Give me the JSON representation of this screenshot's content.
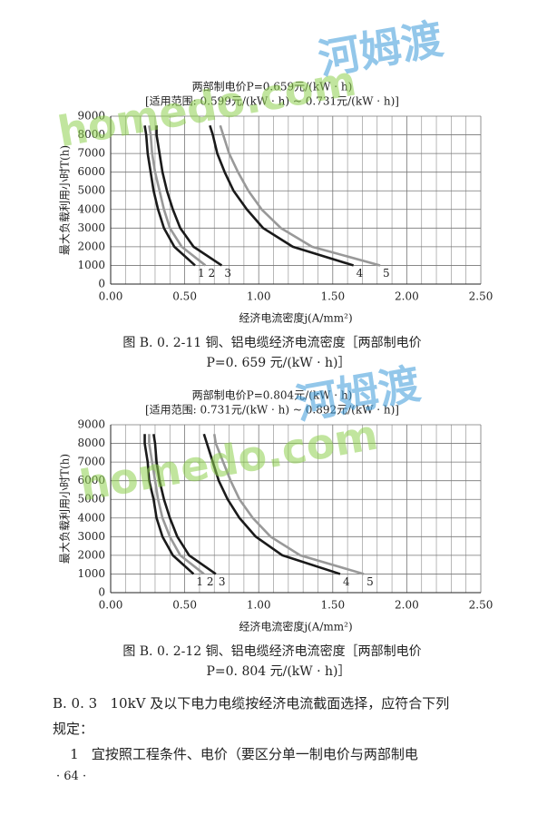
{
  "chart_data": [
    {
      "type": "line",
      "title": "两部制电价P=0.659元/(kW · h)",
      "subtitle": "[适用范围: 0.599元/(kW · h) ~ 0.731元/(kW · h)]",
      "x_label": "经济电流密度j(A/mm²)",
      "y_label": "最大负载利用小时T(h)",
      "xlim": [
        0,
        2.5
      ],
      "ylim": [
        0,
        9000
      ],
      "xticks": [
        {
          "value": 0,
          "label": "0.00"
        },
        {
          "value": 0.5,
          "label": "0.50"
        },
        {
          "value": 1,
          "label": "1.00"
        },
        {
          "value": 1.5,
          "label": "1.50"
        },
        {
          "value": 2,
          "label": "2.00"
        },
        {
          "value": 2.5,
          "label": "2.50"
        }
      ],
      "xminorticks": [
        0.1,
        0.2,
        0.3,
        0.4,
        0.6,
        0.7,
        0.8,
        0.9,
        1.1,
        1.2,
        1.3,
        1.4,
        1.6,
        1.7,
        1.8,
        1.9,
        2.1,
        2.2,
        2.3,
        2.4
      ],
      "yticks": [
        0,
        1000,
        2000,
        3000,
        4000,
        5000,
        6000,
        7000,
        8000,
        9000
      ],
      "grid": true,
      "series": [
        {
          "name": "1",
          "color": "#1a1a1a",
          "x": [
            0.57,
            0.43,
            0.36,
            0.32,
            0.29,
            0.27,
            0.25,
            0.24,
            0.23
          ],
          "values": [
            1000,
            2000,
            3000,
            4000,
            5000,
            6000,
            7000,
            8000,
            8500
          ]
        },
        {
          "name": "2",
          "color": "#999999",
          "x": [
            0.64,
            0.48,
            0.4,
            0.36,
            0.33,
            0.3,
            0.28,
            0.27,
            0.26
          ],
          "values": [
            1000,
            2000,
            3000,
            4000,
            5000,
            6000,
            7000,
            8000,
            8500
          ]
        },
        {
          "name": "3",
          "color": "#1a1a1a",
          "x": [
            0.75,
            0.56,
            0.47,
            0.42,
            0.38,
            0.35,
            0.33,
            0.31,
            0.31
          ],
          "values": [
            1000,
            2000,
            3000,
            4000,
            5000,
            6000,
            7000,
            8000,
            8500
          ]
        },
        {
          "name": "4",
          "color": "#1a1a1a",
          "x": [
            1.64,
            1.23,
            1.03,
            0.92,
            0.83,
            0.77,
            0.72,
            0.69,
            0.67
          ],
          "values": [
            1000,
            2000,
            3000,
            4000,
            5000,
            6000,
            7000,
            8000,
            8500
          ]
        },
        {
          "name": "5",
          "color": "#999999",
          "x": [
            1.82,
            1.36,
            1.15,
            1.02,
            0.93,
            0.86,
            0.8,
            0.76,
            0.74
          ],
          "values": [
            1000,
            2000,
            3000,
            4000,
            5000,
            6000,
            7000,
            8000,
            8500
          ]
        }
      ],
      "caption": [
        "图 B. 0. 2-11   铜、铝电缆经济电流密度［两部制电价",
        "P=0. 659 元/(kW · h)］"
      ]
    },
    {
      "type": "line",
      "title": "两部制电价P=0.804元/(kW · h)",
      "subtitle": "[适用范围: 0.731元/(kW · h) ~ 0.892元/(kW · h)]",
      "x_label": "经济电流密度j(A/mm²)",
      "y_label": "最大负载利用小时T(h)",
      "xlim": [
        0,
        2.5
      ],
      "ylim": [
        0,
        9000
      ],
      "xticks": [
        {
          "value": 0,
          "label": "0.00"
        },
        {
          "value": 0.5,
          "label": "0.50"
        },
        {
          "value": 1,
          "label": "1.00"
        },
        {
          "value": 1.5,
          "label": "1.50"
        },
        {
          "value": 2,
          "label": "2.00"
        },
        {
          "value": 2.5,
          "label": "2.50"
        }
      ],
      "xminorticks": [
        0.1,
        0.2,
        0.3,
        0.4,
        0.6,
        0.7,
        0.8,
        0.9,
        1.1,
        1.2,
        1.3,
        1.4,
        1.6,
        1.7,
        1.8,
        1.9,
        2.1,
        2.2,
        2.3,
        2.4
      ],
      "yticks": [
        0,
        1000,
        2000,
        3000,
        4000,
        5000,
        6000,
        7000,
        8000,
        9000
      ],
      "grid": true,
      "series": [
        {
          "name": "1",
          "color": "#1a1a1a",
          "x": [
            0.56,
            0.42,
            0.35,
            0.31,
            0.29,
            0.26,
            0.25,
            0.23,
            0.23
          ],
          "values": [
            1000,
            2000,
            3000,
            4000,
            5000,
            6000,
            7000,
            8000,
            8500
          ]
        },
        {
          "name": "2",
          "color": "#999999",
          "x": [
            0.63,
            0.47,
            0.4,
            0.35,
            0.32,
            0.3,
            0.28,
            0.26,
            0.26
          ],
          "values": [
            1000,
            2000,
            3000,
            4000,
            5000,
            6000,
            7000,
            8000,
            8500
          ]
        },
        {
          "name": "3",
          "color": "#1a1a1a",
          "x": [
            0.71,
            0.53,
            0.45,
            0.4,
            0.36,
            0.33,
            0.31,
            0.3,
            0.29
          ],
          "values": [
            1000,
            2000,
            3000,
            4000,
            5000,
            6000,
            7000,
            8000,
            8500
          ]
        },
        {
          "name": "4",
          "color": "#1a1a1a",
          "x": [
            1.55,
            1.16,
            0.98,
            0.87,
            0.79,
            0.73,
            0.69,
            0.65,
            0.63
          ],
          "values": [
            1000,
            2000,
            3000,
            4000,
            5000,
            6000,
            7000,
            8000,
            8500
          ]
        },
        {
          "name": "5",
          "color": "#999999",
          "x": [
            1.71,
            1.28,
            1.08,
            0.96,
            0.87,
            0.81,
            0.76,
            0.71,
            0.7
          ],
          "values": [
            1000,
            2000,
            3000,
            4000,
            5000,
            6000,
            7000,
            8000,
            8500
          ]
        }
      ],
      "caption": [
        "图 B. 0. 2-12   铜、铝电缆经济电流密度［两部制电价",
        "P=0. 804 元/(kW · h)］"
      ]
    }
  ],
  "body": {
    "lines": [
      "B. 0. 3   10kV 及以下电力电缆按经济电流截面选择，应符合下列",
      "规定：",
      "    1   宜按照工程条件、电价（要区分单一制电价与两部制电"
    ],
    "page_number": "· 64 ·"
  },
  "watermark": {
    "site": "homedo.com",
    "brand": "河姆渡"
  }
}
